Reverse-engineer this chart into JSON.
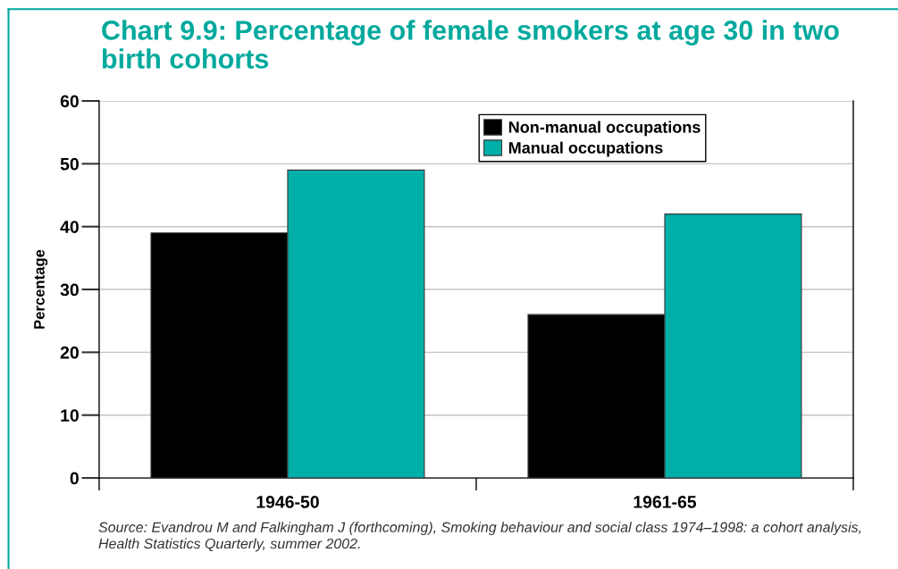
{
  "chart_data": {
    "type": "bar",
    "title": "Chart 9.9: Percentage of female smokers at age 30 in two birth cohorts",
    "ylabel": "Percentage",
    "categories": [
      "1946-50",
      "1961-65"
    ],
    "series": [
      {
        "name": "Non-manual occupations",
        "color": "#000000",
        "values": [
          39,
          26
        ]
      },
      {
        "name": "Manual occupations",
        "color": "#00afa8",
        "values": [
          49,
          42
        ]
      }
    ],
    "ylim": [
      0,
      60
    ],
    "yticks": [
      0,
      10,
      20,
      30,
      40,
      50,
      60
    ],
    "grid": "y",
    "legend": "top right",
    "annotations": [
      "Source: Evandrou M and Falkingham J (forthcoming), Smoking behaviour and social class 1974–1998: a cohort analysis, Health Statistics Quarterly, summer 2002."
    ]
  }
}
